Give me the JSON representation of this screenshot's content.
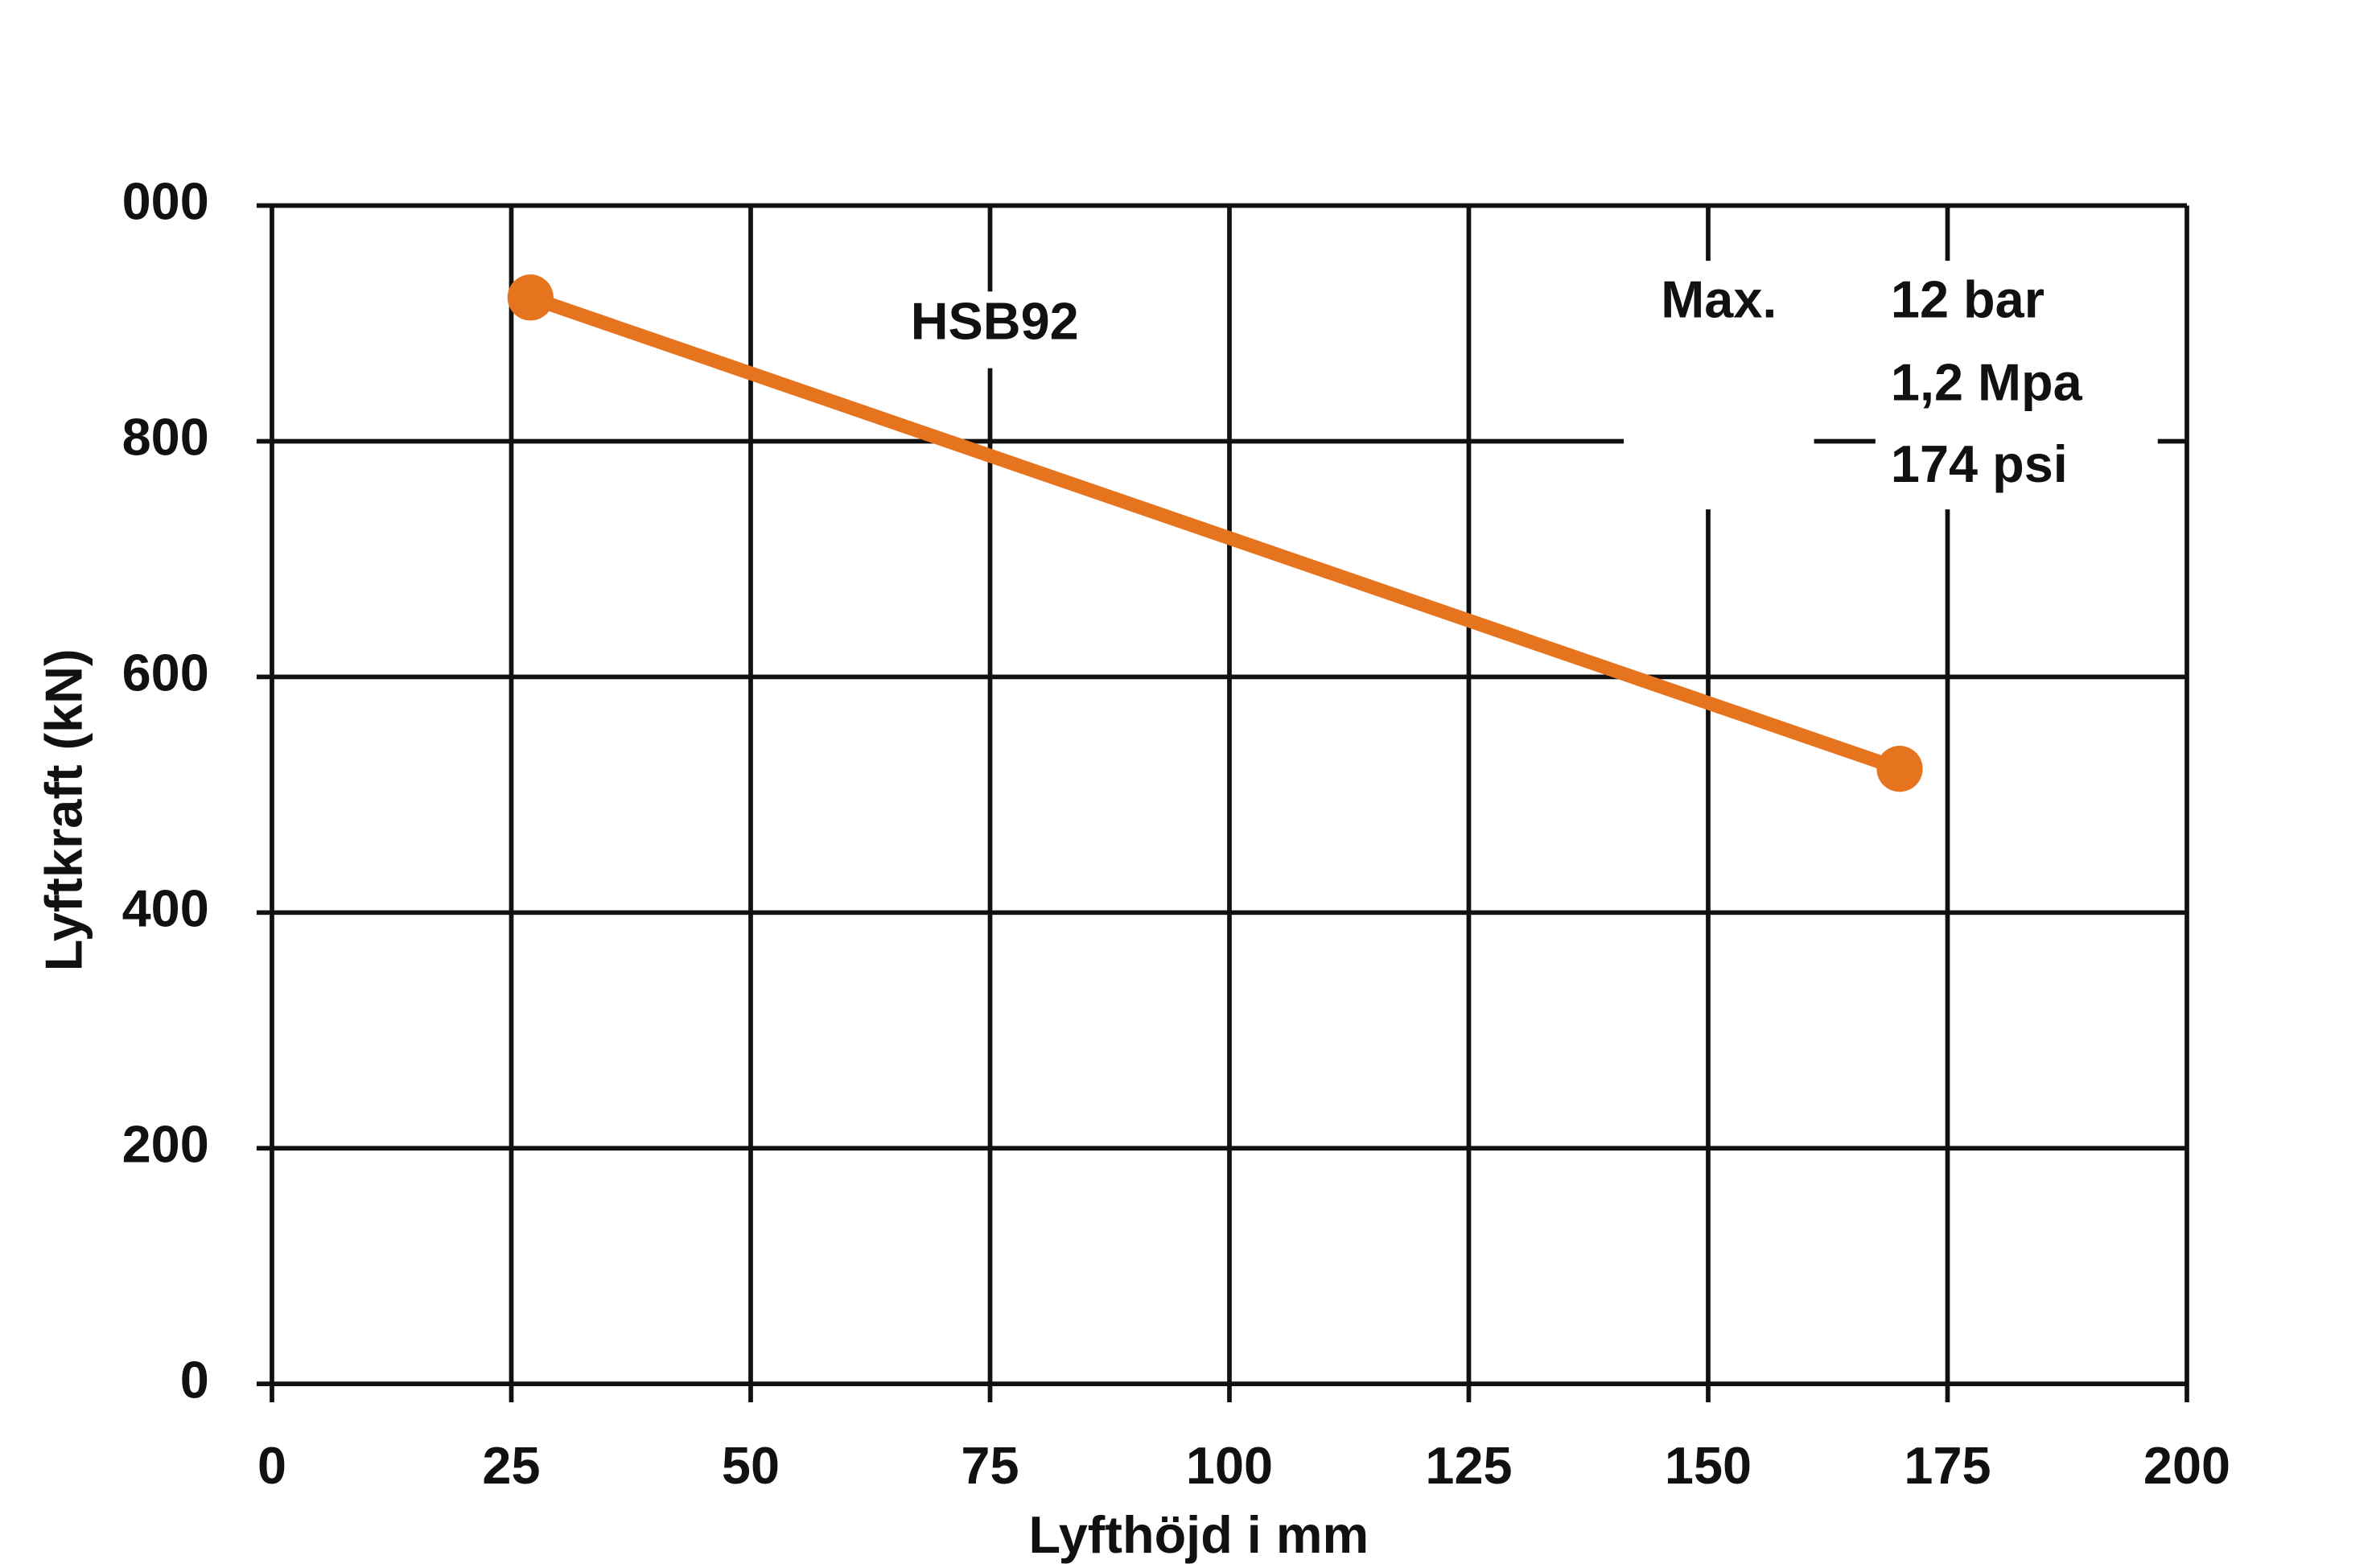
{
  "chart_data": {
    "type": "line",
    "x_label": "Lyfthöjd i mm",
    "y_label": "Lyftkraft (kN)",
    "series": [
      {
        "name": "HSB92",
        "color": "#e6731e",
        "x": [
          27,
          170
        ],
        "values": [
          922,
          522
        ]
      }
    ],
    "xlim": [
      0,
      200
    ],
    "xticks": [
      0,
      25,
      50,
      75,
      100,
      125,
      150,
      175,
      200
    ],
    "ylim": [
      0,
      1000
    ],
    "yticks": [
      0,
      200,
      400,
      600,
      800,
      {
        "value": 1000,
        "label": "000"
      }
    ],
    "grid": true,
    "annotations": [
      "HSB92",
      "Max.",
      "12 bar",
      "1,2 Mpa",
      "174 psi"
    ]
  }
}
